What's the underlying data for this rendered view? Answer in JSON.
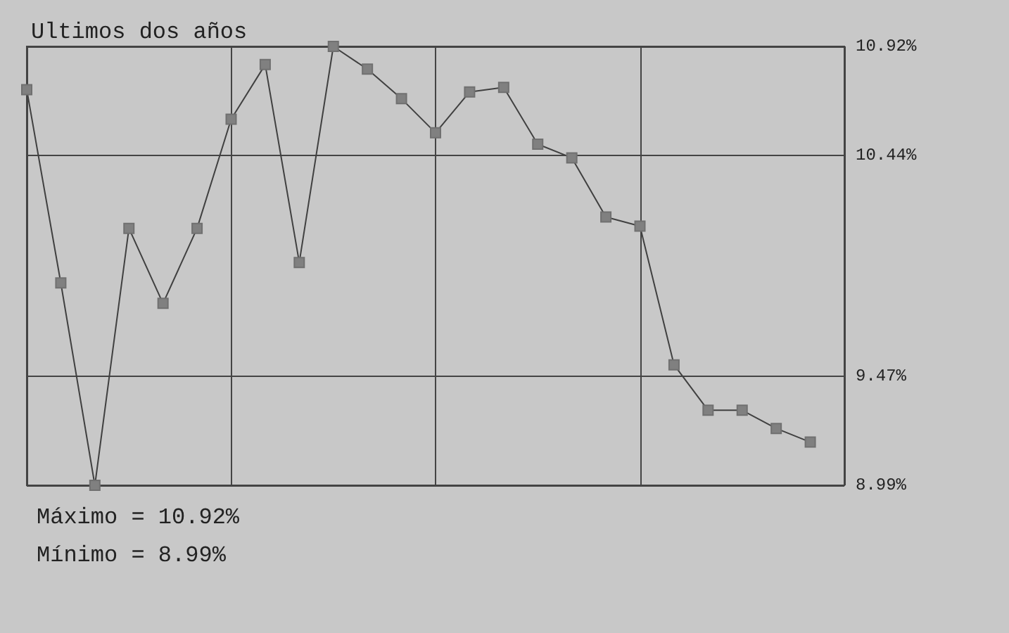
{
  "chart_data": {
    "type": "line",
    "title": "Ultimos dos años",
    "categories": [
      null,
      null,
      null,
      null,
      null,
      null,
      null,
      null,
      null,
      null,
      null,
      null,
      null,
      null,
      null,
      null,
      null,
      null,
      null,
      null,
      null,
      null,
      null,
      null
    ],
    "series": [
      {
        "color": "#404040",
        "values": [
          10.73,
          9.88,
          8.99,
          10.12,
          9.79,
          10.12,
          10.6,
          10.84,
          9.97,
          10.92,
          10.82,
          10.69,
          10.54,
          10.72,
          10.74,
          10.49,
          10.43,
          10.17,
          10.13,
          9.52,
          9.32,
          9.32,
          9.24,
          9.18
        ]
      }
    ],
    "ylim": [
      8.99,
      10.92
    ],
    "yticks": [
      {
        "value": 8.99,
        "label": "8.99%"
      },
      {
        "value": 9.47,
        "label": "9.47%"
      },
      {
        "value": 10.44,
        "label": "10.44%"
      },
      {
        "value": 10.92,
        "label": "10.92%"
      }
    ],
    "annotations": [
      "Máximo = 10.92%",
      "Mínimo = 8.99%"
    ],
    "grid": true,
    "marker": "square",
    "line_style": "solid"
  }
}
